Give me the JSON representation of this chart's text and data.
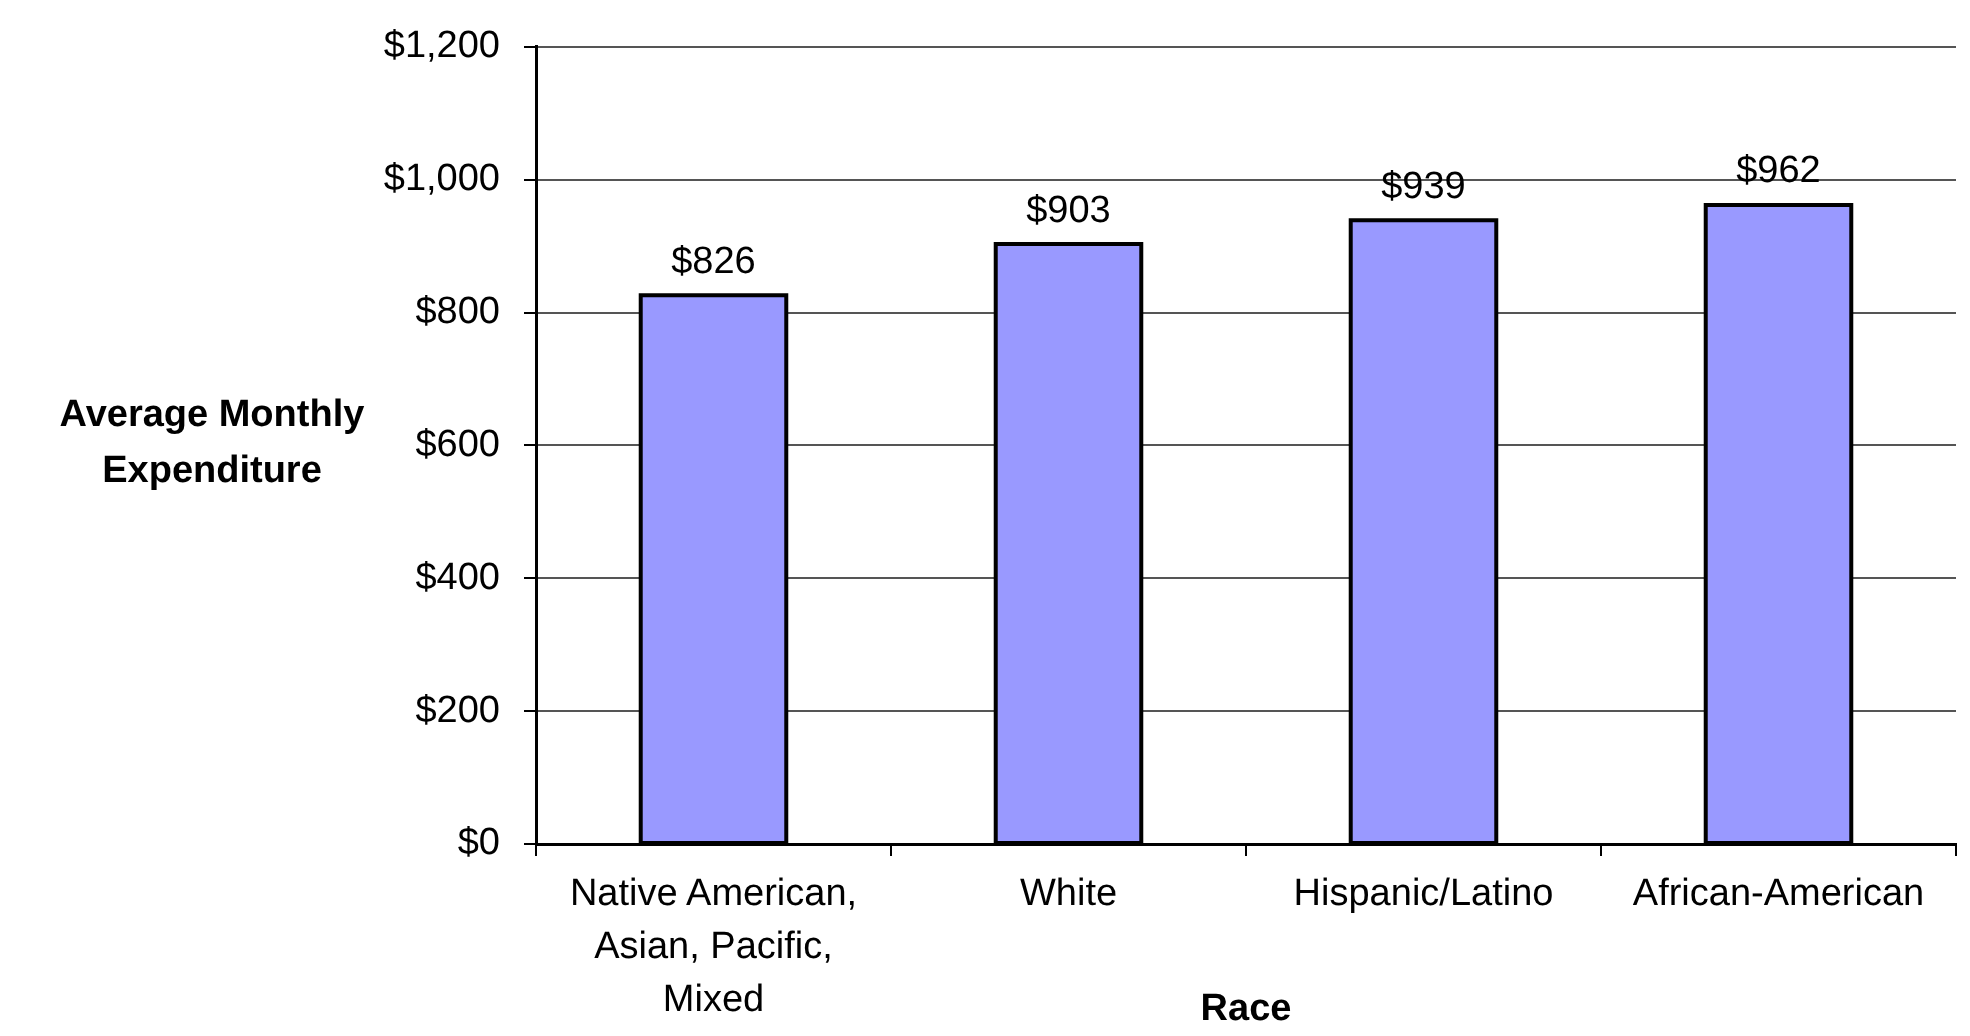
{
  "chart_data": {
    "type": "bar",
    "xlabel": "Race",
    "ylabel": "Average Monthly Expenditure",
    "categories": [
      "Native American, Asian, Pacific, Mixed",
      "White",
      "Hispanic/Latino",
      "African-American"
    ],
    "values": [
      826,
      903,
      939,
      962
    ],
    "color": "#9999ff",
    "value_labels": [
      "$826",
      "$903",
      "$939",
      "$962"
    ],
    "ylim": [
      0,
      1200
    ],
    "yticks": [
      {
        "value": 0,
        "label": "$0"
      },
      {
        "value": 200,
        "label": "$200"
      },
      {
        "value": 400,
        "label": "$400"
      },
      {
        "value": 600,
        "label": "$600"
      },
      {
        "value": 800,
        "label": "$800"
      },
      {
        "value": 1000,
        "label": "$1,000"
      },
      {
        "value": 1200,
        "label": "$1,200"
      }
    ],
    "grid": "y"
  }
}
